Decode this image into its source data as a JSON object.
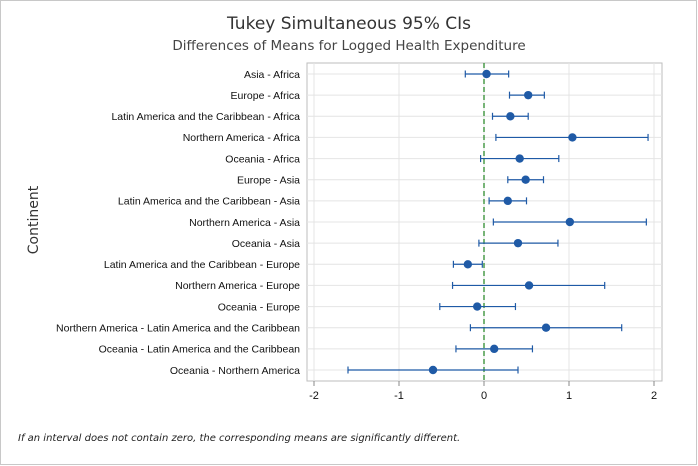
{
  "chart_data": {
    "type": "interval",
    "title": "Tukey Simultaneous 95% CIs",
    "subtitle": "Differences of Means for Logged Health Expenditure",
    "ylabel": "Continent",
    "xlabel": "",
    "xlim": [
      -2.0,
      2.0
    ],
    "xticks": [
      "-2",
      "-1",
      "0",
      "1",
      "2"
    ],
    "reference_line": 0,
    "grid": true,
    "series_color": "#1f5aa6",
    "reference_color": "#2e8b2e",
    "categories": [
      "Asia - Africa",
      "Europe - Africa",
      "Latin America and the Caribbean - Africa",
      "Northern America - Africa",
      "Oceania - Africa",
      "Europe - Asia",
      "Latin America and the Caribbean - Asia",
      "Northern America - Asia",
      "Oceania - Asia",
      "Latin America and the Caribbean - Europe",
      "Northern America - Europe",
      "Oceania - Europe",
      "Northern America - Latin America and the Caribbean",
      "Oceania - Latin America and the Caribbean",
      "Oceania - Northern America"
    ],
    "estimates": [
      0.03,
      0.52,
      0.31,
      1.04,
      0.42,
      0.49,
      0.28,
      1.01,
      0.4,
      -0.19,
      0.53,
      -0.08,
      0.73,
      0.12,
      -0.6
    ],
    "lower": [
      -0.22,
      0.3,
      0.1,
      0.14,
      -0.04,
      0.28,
      0.06,
      0.11,
      -0.06,
      -0.36,
      -0.37,
      -0.52,
      -0.16,
      -0.33,
      -1.6
    ],
    "upper": [
      0.29,
      0.71,
      0.52,
      1.93,
      0.88,
      0.7,
      0.5,
      1.91,
      0.87,
      -0.02,
      1.42,
      0.37,
      1.62,
      0.57,
      0.4
    ]
  },
  "footnote": "If an interval does not contain zero, the corresponding means are significantly different."
}
